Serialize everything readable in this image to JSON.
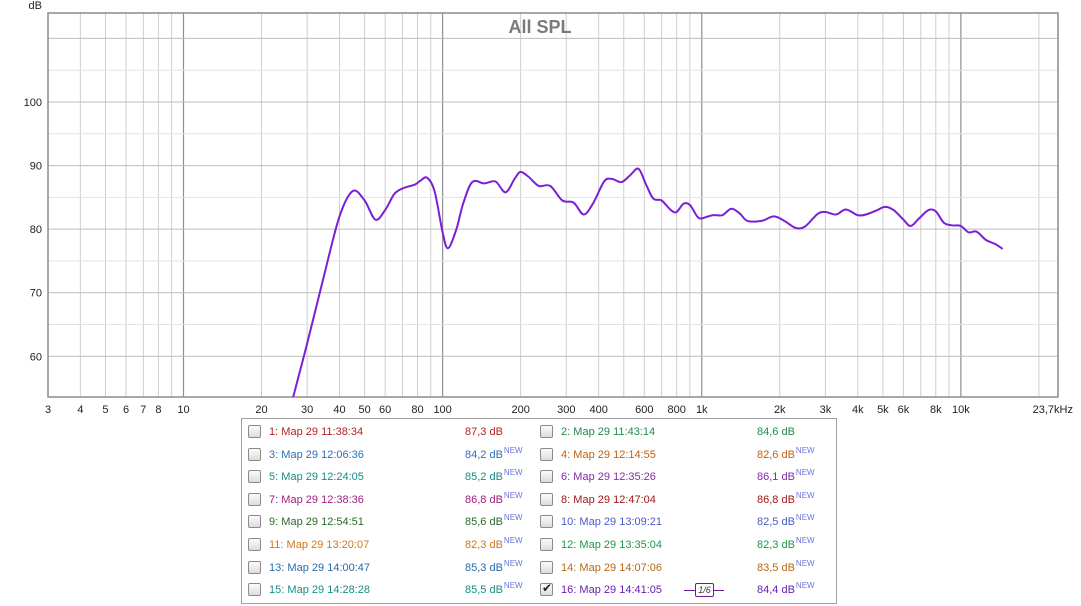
{
  "chart_data": {
    "type": "line",
    "title": "All SPL",
    "ylabel": "dB",
    "xlabel": "",
    "x_scale": "log",
    "xlim": [
      3,
      23700
    ],
    "ylim": [
      53.6,
      114
    ],
    "grid": true,
    "y_ticks": [
      60,
      70,
      80,
      90,
      100
    ],
    "x_ticks": [
      {
        "value": 3,
        "label": "3"
      },
      {
        "value": 4,
        "label": "4"
      },
      {
        "value": 5,
        "label": "5"
      },
      {
        "value": 6,
        "label": "6"
      },
      {
        "value": 7,
        "label": "7"
      },
      {
        "value": 8,
        "label": "8"
      },
      {
        "value": 10,
        "label": "10"
      },
      {
        "value": 20,
        "label": "20"
      },
      {
        "value": 30,
        "label": "30"
      },
      {
        "value": 40,
        "label": "40"
      },
      {
        "value": 50,
        "label": "50"
      },
      {
        "value": 60,
        "label": "60"
      },
      {
        "value": 80,
        "label": "80"
      },
      {
        "value": 100,
        "label": "100"
      },
      {
        "value": 200,
        "label": "200"
      },
      {
        "value": 300,
        "label": "300"
      },
      {
        "value": 400,
        "label": "400"
      },
      {
        "value": 600,
        "label": "600"
      },
      {
        "value": 800,
        "label": "800"
      },
      {
        "value": 1000,
        "label": "1k"
      },
      {
        "value": 2000,
        "label": "2k"
      },
      {
        "value": 3000,
        "label": "3k"
      },
      {
        "value": 4000,
        "label": "4k"
      },
      {
        "value": 5000,
        "label": "5k"
      },
      {
        "value": 6000,
        "label": "6k"
      },
      {
        "value": 8000,
        "label": "8k"
      },
      {
        "value": 10000,
        "label": "10k"
      },
      {
        "value": 23700,
        "label": "23,7kHz"
      }
    ],
    "series": [
      {
        "color": "#7b1fd6",
        "points": [
          [
            26.5,
            53.6
          ],
          [
            30,
            62
          ],
          [
            35,
            73
          ],
          [
            40,
            82
          ],
          [
            45,
            86
          ],
          [
            50,
            84.5
          ],
          [
            55,
            81.5
          ],
          [
            60,
            83
          ],
          [
            65,
            85.5
          ],
          [
            70,
            86.4
          ],
          [
            78,
            87
          ],
          [
            82,
            87.6
          ],
          [
            87,
            88.1
          ],
          [
            93,
            86
          ],
          [
            100,
            79.5
          ],
          [
            105,
            77
          ],
          [
            113,
            80
          ],
          [
            120,
            84
          ],
          [
            130,
            87.4
          ],
          [
            145,
            87.2
          ],
          [
            160,
            87.5
          ],
          [
            175,
            85.8
          ],
          [
            190,
            88
          ],
          [
            200,
            89
          ],
          [
            215,
            88.2
          ],
          [
            235,
            86.8
          ],
          [
            260,
            86.8
          ],
          [
            290,
            84.5
          ],
          [
            320,
            84.2
          ],
          [
            350,
            82.3
          ],
          [
            380,
            84
          ],
          [
            420,
            87.5
          ],
          [
            450,
            87.9
          ],
          [
            490,
            87.4
          ],
          [
            530,
            88.5
          ],
          [
            570,
            89.5
          ],
          [
            610,
            87
          ],
          [
            650,
            84.8
          ],
          [
            700,
            84.5
          ],
          [
            760,
            83
          ],
          [
            800,
            82.7
          ],
          [
            850,
            84
          ],
          [
            900,
            83.8
          ],
          [
            960,
            82
          ],
          [
            1000,
            81.7
          ],
          [
            1100,
            82.2
          ],
          [
            1200,
            82.2
          ],
          [
            1300,
            83.2
          ],
          [
            1400,
            82.5
          ],
          [
            1500,
            81.3
          ],
          [
            1700,
            81.3
          ],
          [
            1900,
            82
          ],
          [
            2100,
            81.2
          ],
          [
            2300,
            80.2
          ],
          [
            2500,
            80.4
          ],
          [
            2800,
            82.4
          ],
          [
            3000,
            82.7
          ],
          [
            3300,
            82.3
          ],
          [
            3600,
            83.1
          ],
          [
            4000,
            82.2
          ],
          [
            4300,
            82.3
          ],
          [
            4700,
            82.9
          ],
          [
            5100,
            83.5
          ],
          [
            5500,
            83
          ],
          [
            6000,
            81.5
          ],
          [
            6400,
            80.5
          ],
          [
            6900,
            81.7
          ],
          [
            7500,
            83
          ],
          [
            8000,
            82.8
          ],
          [
            8600,
            81
          ],
          [
            9200,
            80.6
          ],
          [
            10000,
            80.5
          ],
          [
            10700,
            79.5
          ],
          [
            11500,
            79.6
          ],
          [
            12500,
            78.3
          ],
          [
            13500,
            77.7
          ],
          [
            14500,
            76.9
          ]
        ]
      }
    ]
  },
  "legend": {
    "entries": [
      {
        "label": "1: Мар 29 11:38:34",
        "value": "87,3 dB",
        "new": "",
        "color": "#b22222",
        "checked": false
      },
      {
        "label": "2: Мар 29 11:43:14",
        "value": "84,6 dB",
        "new": "",
        "color": "#1f8a4c",
        "checked": false
      },
      {
        "label": "3: Мар 29 12:06:36",
        "value": "84,2 dB",
        "new": "NEW",
        "color": "#2f6fb8",
        "checked": false
      },
      {
        "label": "4: Мар 29 12:14:55",
        "value": "82,6 dB",
        "new": "NEW",
        "color": "#c06010",
        "checked": false
      },
      {
        "label": "5: Мар 29 12:24:05",
        "value": "85,2 dB",
        "new": "NEW",
        "color": "#1a8a8a",
        "checked": false
      },
      {
        "label": "6: Мар 29 12:35:26",
        "value": "86,1 dB",
        "new": "NEW",
        "color": "#8a2aa8",
        "checked": false
      },
      {
        "label": "7: Мар 29 12:38:36",
        "value": "86,8 dB",
        "new": "NEW",
        "color": "#a02080",
        "checked": false
      },
      {
        "label": "8: Мар 29 12:47:04",
        "value": "86,8 dB",
        "new": "NEW",
        "color": "#a01818",
        "checked": false
      },
      {
        "label": "9: Мар 29 12:54:51",
        "value": "85,6 dB",
        "new": "NEW",
        "color": "#2a6a2a",
        "checked": false
      },
      {
        "label": "10: Мар 29 13:09:21",
        "value": "82,5 dB",
        "new": "NEW",
        "color": "#4a5ac8",
        "checked": false
      },
      {
        "label": "11: Мар 29 13:20:07",
        "value": "82,3 dB",
        "new": "NEW",
        "color": "#d07818",
        "checked": false
      },
      {
        "label": "12: Мар 29 13:35:04",
        "value": "82,3 dB",
        "new": "NEW",
        "color": "#1a9a4a",
        "checked": false
      },
      {
        "label": "13: Мар 29 14:00:47",
        "value": "85,3 dB",
        "new": "NEW",
        "color": "#2a6aa8",
        "checked": false
      },
      {
        "label": "14: Мар 29 14:07:06",
        "value": "83,5 dB",
        "new": "NEW",
        "color": "#b86818",
        "checked": false
      },
      {
        "label": "15: Мар 29 14:28:28",
        "value": "85,5 dB",
        "new": "NEW",
        "color": "#1a8a8a",
        "checked": false
      },
      {
        "label": "16: Мар 29 14:41:05",
        "value": "84,4 dB",
        "new": "NEW",
        "color": "#6a1fb0",
        "checked": true
      }
    ],
    "smoothing_label": "1/6"
  }
}
